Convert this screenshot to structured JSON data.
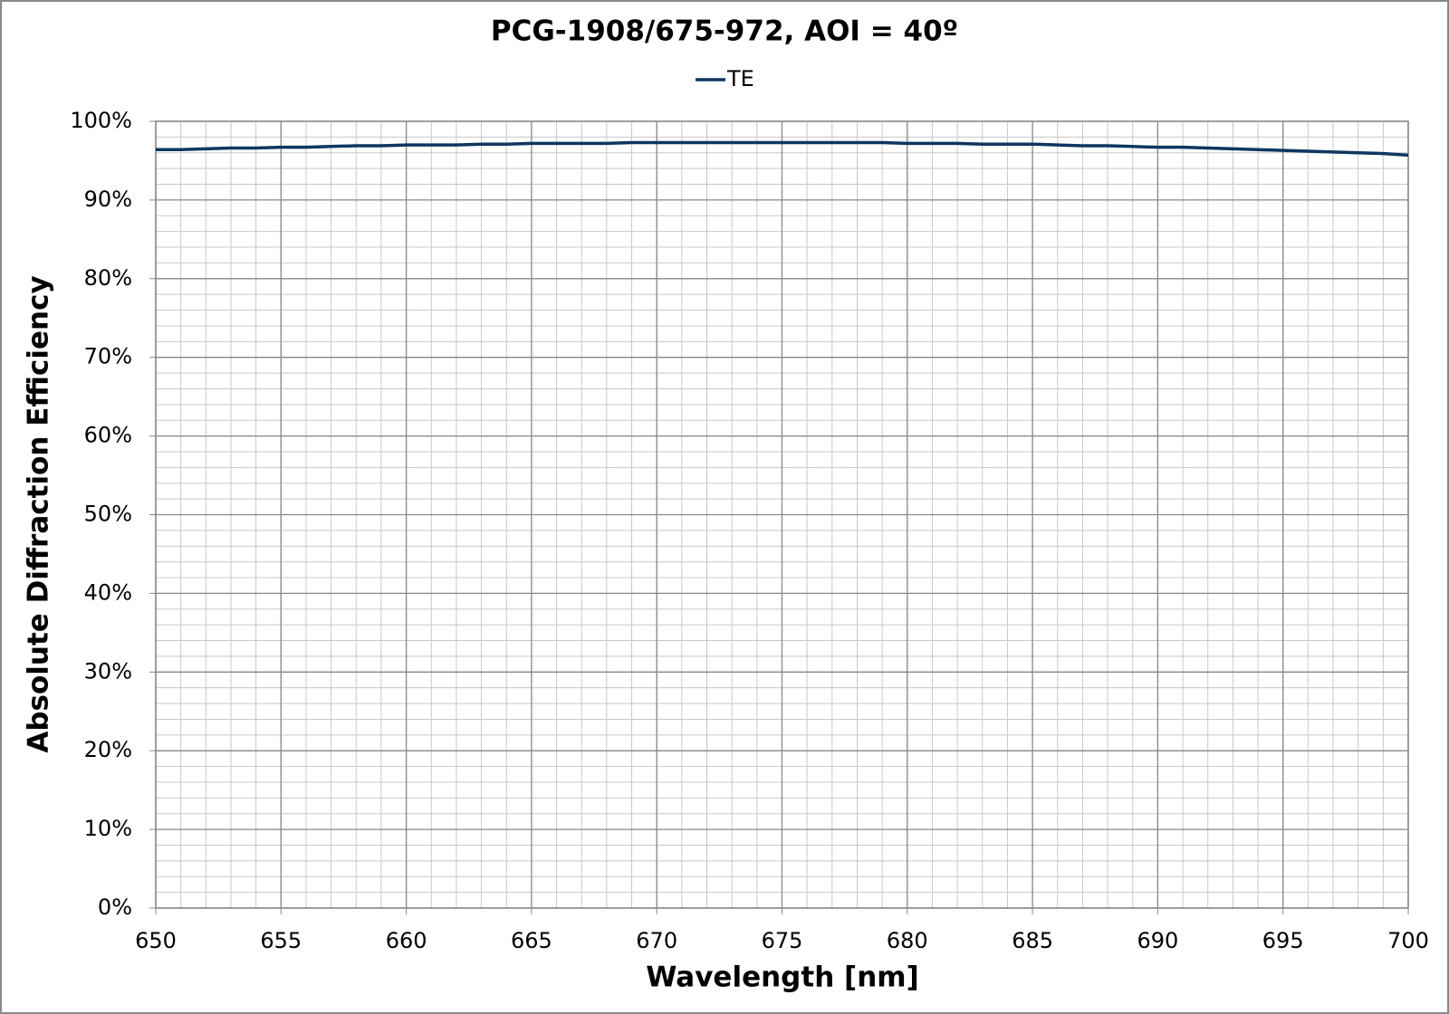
{
  "chart_data": {
    "type": "line",
    "title": "PCG-1908/675-972, AOI = 40º",
    "x_label": "Wavelength [nm]",
    "y_label": "Absolute Diffraction Efficiency",
    "x": [
      650,
      651,
      652,
      653,
      654,
      655,
      656,
      657,
      658,
      659,
      660,
      661,
      662,
      663,
      664,
      665,
      666,
      667,
      668,
      669,
      670,
      671,
      672,
      673,
      674,
      675,
      676,
      677,
      678,
      679,
      680,
      681,
      682,
      683,
      684,
      685,
      686,
      687,
      688,
      689,
      690,
      691,
      692,
      693,
      694,
      695,
      696,
      697,
      698,
      699,
      700
    ],
    "series": [
      {
        "name": "TE",
        "color": "#0d3760",
        "values": [
          96.4,
          96.4,
          96.5,
          96.6,
          96.6,
          96.7,
          96.7,
          96.8,
          96.9,
          96.9,
          97.0,
          97.0,
          97.0,
          97.1,
          97.1,
          97.2,
          97.2,
          97.2,
          97.2,
          97.3,
          97.3,
          97.3,
          97.3,
          97.3,
          97.3,
          97.3,
          97.3,
          97.3,
          97.3,
          97.3,
          97.2,
          97.2,
          97.2,
          97.1,
          97.1,
          97.1,
          97.0,
          96.9,
          96.9,
          96.8,
          96.7,
          96.7,
          96.6,
          96.5,
          96.4,
          96.3,
          96.2,
          96.1,
          96.0,
          95.9,
          95.7
        ]
      }
    ],
    "xlim": [
      650,
      700
    ],
    "xticks": [
      650,
      655,
      660,
      665,
      670,
      675,
      680,
      685,
      690,
      695,
      700
    ],
    "ylim": [
      0,
      100
    ],
    "yticks": [
      {
        "value": 0,
        "label": "0%"
      },
      {
        "value": 10,
        "label": "10%"
      },
      {
        "value": 20,
        "label": "20%"
      },
      {
        "value": 30,
        "label": "30%"
      },
      {
        "value": 40,
        "label": "40%"
      },
      {
        "value": 50,
        "label": "50%"
      },
      {
        "value": 60,
        "label": "60%"
      },
      {
        "value": 70,
        "label": "70%"
      },
      {
        "value": 80,
        "label": "80%"
      },
      {
        "value": 90,
        "label": "90%"
      },
      {
        "value": 100,
        "label": "100%"
      }
    ],
    "grid": true,
    "x_minor_step": 1,
    "y_minor_step": 2,
    "legend": "top"
  }
}
